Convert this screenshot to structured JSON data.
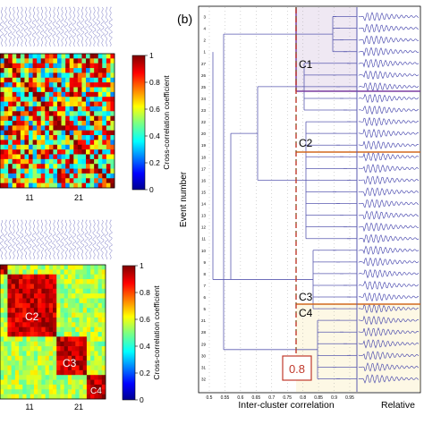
{
  "figure": {
    "panel_b_label": "(b)",
    "colorbar": {
      "ticks": [
        "1",
        "0.8",
        "0.6",
        "0.4",
        "0.2",
        "0"
      ],
      "label": "Cross-correlation coefficient",
      "colormap": "jet"
    },
    "matrix_top": {
      "xticks": [
        "11",
        "21"
      ],
      "note": "unsorted events"
    },
    "matrix_bottom": {
      "xticks": [
        "11",
        "21"
      ],
      "cluster_labels": [
        "C2",
        "C3",
        "C4"
      ]
    },
    "dendrogram": {
      "ylabel": "Event number",
      "xlabel": "Inter-cluster correlation",
      "xticks": [
        "0.5",
        "0.55",
        "0.6",
        "0.65",
        "0.7",
        "0.75",
        "0.8",
        "0.85",
        "0.9",
        "0.95"
      ],
      "event_numbers": [
        "3",
        "4",
        "2",
        "1",
        "27",
        "26",
        "25",
        "24",
        "23",
        "22",
        "20",
        "19",
        "18",
        "17",
        "16",
        "15",
        "14",
        "13",
        "12",
        "11",
        "10",
        "9",
        "8",
        "7",
        "6",
        "5",
        "21",
        "28",
        "29",
        "30",
        "31",
        "32"
      ],
      "threshold_label": "0.8",
      "cluster_labels": [
        "C1",
        "C2",
        "C3",
        "C4"
      ],
      "waveform_axis_label": "Relative"
    },
    "colors": {
      "dendrogram_line": "#5a5ab0",
      "waveform": "#3a3aa8",
      "c1_box": "#7b3fa0",
      "c2_box": "#d2691e",
      "c3_box": "#d2691e",
      "threshold_line": "#c0392b",
      "threshold_box": "#c0392b"
    }
  }
}
